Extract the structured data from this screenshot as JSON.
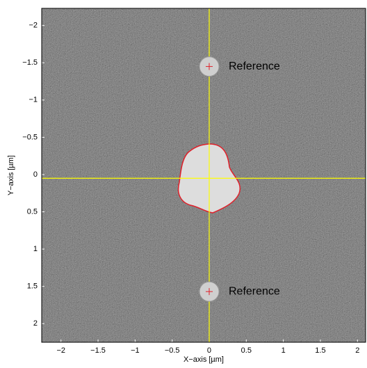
{
  "chart_data": {
    "type": "image",
    "xlabel": "X−axis [µm]",
    "ylabel": "Y−axis [µm]",
    "xlim": [
      -2.26,
      2.11
    ],
    "ylim": [
      -2.23,
      2.25
    ],
    "y_reversed": true,
    "xticks": [
      {
        "value": -2,
        "label": "−2"
      },
      {
        "value": -1.5,
        "label": "−1.5"
      },
      {
        "value": -1,
        "label": "−1"
      },
      {
        "value": -0.5,
        "label": "−0.5"
      },
      0,
      0.5,
      1,
      1.5,
      2
    ],
    "yticks": [
      {
        "value": -2,
        "label": "−2"
      },
      {
        "value": -1.5,
        "label": "−1.5"
      },
      {
        "value": -1,
        "label": "−1"
      },
      {
        "value": -0.5,
        "label": "−0.5"
      },
      0,
      0.5,
      1,
      1.5,
      2
    ],
    "crosshair": {
      "x": 0,
      "y": 0.05,
      "color": "#ffff00"
    },
    "references": [
      {
        "label": "Reference",
        "x": 0,
        "y": -1.45
      },
      {
        "label": "Reference",
        "x": 0,
        "y": 1.57
      }
    ]
  }
}
